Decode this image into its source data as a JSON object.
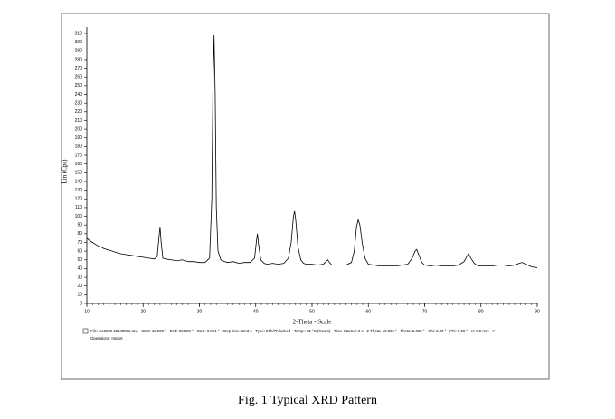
{
  "chart_data": {
    "type": "line",
    "caption": "Fig. 1 Typical XRD Pattern",
    "x_label": "2-Theta - Scale",
    "y_label": "Lin (Cps)",
    "info_line": "File: lsc5900 20140506.raw - Start: 10.000 ° - End: 90.009 ° - Step: 0.021 ° - Step time: 18.3 s - Type: 2Th/Th locked - Temp.: 25 °C (Room) - Time Started: 8 s - 2-Theta: 10.000 ° - Theta: 5.000 ° - Chi: 0.00 ° - Phi: 0.00 ° - X: 0.0 mm - Y",
    "operations": "Operations: Import",
    "xlim": [
      10,
      90
    ],
    "ylim": [
      0,
      310
    ],
    "xticks": [
      10,
      20,
      30,
      40,
      50,
      60,
      70,
      80,
      90
    ],
    "yticks": [
      0,
      10,
      20,
      30,
      40,
      50,
      60,
      70,
      80,
      90,
      100,
      110,
      120,
      130,
      140,
      150,
      160,
      170,
      180,
      190,
      200,
      210,
      220,
      230,
      240,
      250,
      260,
      270,
      280,
      290,
      300,
      310
    ],
    "series": [
      {
        "color": "#000000",
        "x": [
          10,
          10.5,
          11,
          11.5,
          12,
          12.5,
          13,
          14,
          15,
          16,
          17,
          18,
          19,
          20,
          21,
          22,
          22.5,
          22.8,
          23,
          23.2,
          23.5,
          24,
          25,
          26,
          27,
          28,
          29,
          30,
          31,
          31.8,
          32.2,
          32.4,
          32.6,
          32.8,
          33.0,
          33.3,
          33.8,
          34.5,
          35,
          36,
          37,
          38,
          39,
          39.8,
          40.1,
          40.3,
          40.5,
          40.9,
          41.5,
          42,
          43,
          44,
          45,
          45.8,
          46.3,
          46.7,
          46.9,
          47.1,
          47.5,
          48,
          48.5,
          49,
          50,
          51,
          52,
          52.5,
          52.8,
          53.1,
          53.5,
          54,
          55,
          56,
          57,
          57.5,
          57.9,
          58.2,
          58.5,
          58.9,
          59.4,
          60,
          61,
          62,
          63,
          64,
          65,
          66,
          67,
          67.8,
          68.3,
          68.6,
          69,
          69.5,
          70,
          71,
          72,
          73,
          74,
          75,
          76,
          77,
          77.5,
          77.8,
          78.2,
          78.8,
          79.5,
          80,
          81,
          82,
          83,
          84,
          85,
          86,
          86.8,
          87.3,
          88,
          89,
          90
        ],
        "values": [
          75,
          72,
          70,
          68,
          66,
          65,
          63,
          61,
          59,
          57,
          56,
          55,
          54,
          53,
          52,
          51,
          54,
          75,
          88,
          70,
          52,
          51,
          50,
          49,
          50,
          48,
          48,
          47,
          47,
          52,
          120,
          250,
          308,
          240,
          110,
          60,
          50,
          48,
          47,
          48,
          46,
          47,
          47,
          52,
          70,
          80,
          68,
          50,
          46,
          45,
          46,
          45,
          46,
          52,
          70,
          100,
          106,
          96,
          65,
          50,
          46,
          45,
          45,
          44,
          45,
          48,
          50,
          47,
          44,
          44,
          44,
          44,
          47,
          60,
          88,
          96,
          90,
          70,
          52,
          45,
          44,
          43,
          43,
          43,
          43,
          44,
          45,
          52,
          60,
          62,
          55,
          47,
          44,
          43,
          44,
          43,
          43,
          43,
          44,
          48,
          54,
          57,
          52,
          46,
          43,
          43,
          43,
          43,
          44,
          44,
          43,
          44,
          46,
          47,
          45,
          42,
          41
        ]
      }
    ]
  }
}
